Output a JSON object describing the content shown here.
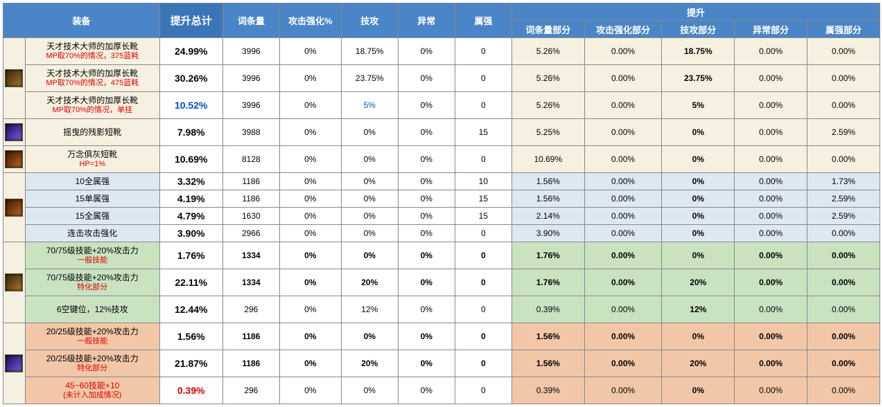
{
  "headers": {
    "equip": "装备",
    "total": "提升总计",
    "stat": "词条量",
    "atkPct": "攻击强化%",
    "skill": "技攻",
    "abn": "异常",
    "elem": "属强",
    "boost": "提升",
    "sub": [
      "词条量部分",
      "攻击强化部分",
      "技攻部分",
      "异常部分",
      "属强部分"
    ]
  },
  "colors": {
    "header_bg": "#4a86c7",
    "header_fg": "#ffffff",
    "bg_cream": "#f5f0df",
    "bg_blue": "#dde8f3",
    "bg_green": "#c9e3c0",
    "bg_orange": "#f2c7a8",
    "blue_txt": "#0050c8",
    "red_txt": "#d00"
  },
  "groups": [
    {
      "bg": "bg-cream",
      "iconRows": 3,
      "iconClass": "",
      "rows": [
        {
          "name": "天才技术大师的加厚长靴",
          "sub": "MP取70%的情况，375蓝耗",
          "total": "24.99%",
          "v": [
            "3996",
            "0%",
            "18.75%",
            "0%",
            "0"
          ],
          "b": [
            "5.26%",
            "0.00%",
            "18.75%",
            "0.00%",
            "0.00%"
          ],
          "totalClass": "",
          "boldIdx": [
            2
          ]
        },
        {
          "name": "天才技术大师的加厚长靴",
          "sub": "MP取70%的情况，475蓝耗",
          "total": "30.26%",
          "v": [
            "3996",
            "0%",
            "23.75%",
            "0%",
            "0"
          ],
          "b": [
            "5.26%",
            "0.00%",
            "23.75%",
            "0.00%",
            "0.00%"
          ],
          "totalClass": "",
          "boldIdx": [
            2
          ]
        },
        {
          "name": "天才技术大师的加厚长靴",
          "sub": "MP取70%的情况，单挂",
          "total": "10.52%",
          "v": [
            "3996",
            "0%",
            "5%",
            "0%",
            "0"
          ],
          "vClass": {
            "2": "blue-txt"
          },
          "b": [
            "5.26%",
            "0.00%",
            "5%",
            "0.00%",
            "0.00%"
          ],
          "totalClass": "blue-txt",
          "boldIdx": [
            2
          ]
        }
      ]
    },
    {
      "bg": "bg-cream",
      "iconRows": 1,
      "iconClass": "alt1",
      "rows": [
        {
          "name": "摇曳的残影短靴",
          "sub": "",
          "total": "7.98%",
          "v": [
            "3988",
            "0%",
            "0%",
            "0%",
            "15"
          ],
          "b": [
            "5.25%",
            "0.00%",
            "0%",
            "0.00%",
            "2.59%"
          ],
          "boldIdx": [
            2
          ]
        }
      ]
    },
    {
      "bg": "bg-cream",
      "iconRows": 1,
      "iconClass": "alt2",
      "rows": [
        {
          "name": "万念俱灰短靴",
          "sub": "HP=1%",
          "total": "10.69%",
          "v": [
            "8128",
            "0%",
            "0%",
            "0%",
            "0"
          ],
          "b": [
            "10.69%",
            "0.00%",
            "0%",
            "0.00%",
            "0.00%"
          ],
          "boldIdx": [
            2
          ]
        }
      ]
    },
    {
      "bg": "bg-blue",
      "iconRows": 4,
      "iconClass": "alt2",
      "rowH": "20px",
      "rows": [
        {
          "name": "10全属强",
          "total": "3.32%",
          "v": [
            "1186",
            "0%",
            "0%",
            "0%",
            "10"
          ],
          "b": [
            "1.56%",
            "0.00%",
            "0%",
            "0.00%",
            "1.73%"
          ],
          "boldIdx": [
            2
          ]
        },
        {
          "name": "15单属强",
          "total": "4.19%",
          "v": [
            "1186",
            "0%",
            "0%",
            "0%",
            "15"
          ],
          "b": [
            "1.56%",
            "0.00%",
            "0%",
            "0.00%",
            "2.59%"
          ],
          "boldIdx": [
            2
          ]
        },
        {
          "name": "15全属强",
          "total": "4.79%",
          "v": [
            "1630",
            "0%",
            "0%",
            "0%",
            "15"
          ],
          "b": [
            "2.14%",
            "0.00%",
            "0%",
            "0.00%",
            "2.59%"
          ],
          "boldIdx": [
            2
          ]
        },
        {
          "name": "连击攻击强化",
          "total": "3.90%",
          "v": [
            "2966",
            "0%",
            "0%",
            "0%",
            "0"
          ],
          "b": [
            "3.90%",
            "0.00%",
            "0%",
            "0.00%",
            "0.00%"
          ],
          "boldIdx": [
            2
          ]
        }
      ]
    },
    {
      "bg": "bg-green",
      "iconRows": 3,
      "iconClass": "",
      "rows": [
        {
          "name": "70/75级技能+20%攻击力",
          "sub": "一般技能",
          "total": "1.76%",
          "v": [
            "1334",
            "0%",
            "0%",
            "0%",
            "0"
          ],
          "b": [
            "1.76%",
            "0.00%",
            "0%",
            "0.00%",
            "0.00%"
          ],
          "allBold": true,
          "boldIdx": [
            2
          ]
        },
        {
          "name": "70/75级技能+20%攻击力",
          "sub": "特化部分",
          "total": "22.11%",
          "v": [
            "1334",
            "0%",
            "20%",
            "0%",
            "0"
          ],
          "b": [
            "1.76%",
            "0.00%",
            "20%",
            "0.00%",
            "0.00%"
          ],
          "allBold": true,
          "boldIdx": [
            2
          ]
        },
        {
          "name": "6空键位，12%技攻",
          "sub": "",
          "total": "12.44%",
          "v": [
            "296",
            "0%",
            "12%",
            "0%",
            "0"
          ],
          "b": [
            "0.39%",
            "0.00%",
            "12%",
            "0.00%",
            "0.00%"
          ],
          "boldIdx": [
            2
          ]
        }
      ]
    },
    {
      "bg": "bg-orange",
      "iconRows": 3,
      "iconClass": "alt1",
      "rows": [
        {
          "name": "20/25级技能+20%攻击力",
          "sub": "一般技能",
          "total": "1.56%",
          "v": [
            "1186",
            "0%",
            "0%",
            "0%",
            "0"
          ],
          "b": [
            "1.56%",
            "0.00%",
            "0%",
            "0.00%",
            "0.00%"
          ],
          "allBold": true,
          "boldIdx": [
            2
          ]
        },
        {
          "name": "20/25级技能+20%攻击力",
          "sub": "特化部分",
          "total": "21.87%",
          "v": [
            "1186",
            "0%",
            "20%",
            "0%",
            "0"
          ],
          "b": [
            "1.56%",
            "0.00%",
            "20%",
            "0.00%",
            "0.00%"
          ],
          "allBold": true,
          "boldIdx": [
            2
          ]
        },
        {
          "name": "45~60技能+10",
          "sub": "(未计入加成情况)",
          "nameClass": "red-txt",
          "subClass": "red-txt",
          "total": "0.39%",
          "totalClass": "red-txt",
          "v": [
            "296",
            "0%",
            "0%",
            "0%",
            "0"
          ],
          "b": [
            "0.39%",
            "0.00%",
            "0%",
            "0.00%",
            "0.00%"
          ],
          "boldIdx": [
            2
          ]
        }
      ]
    }
  ]
}
